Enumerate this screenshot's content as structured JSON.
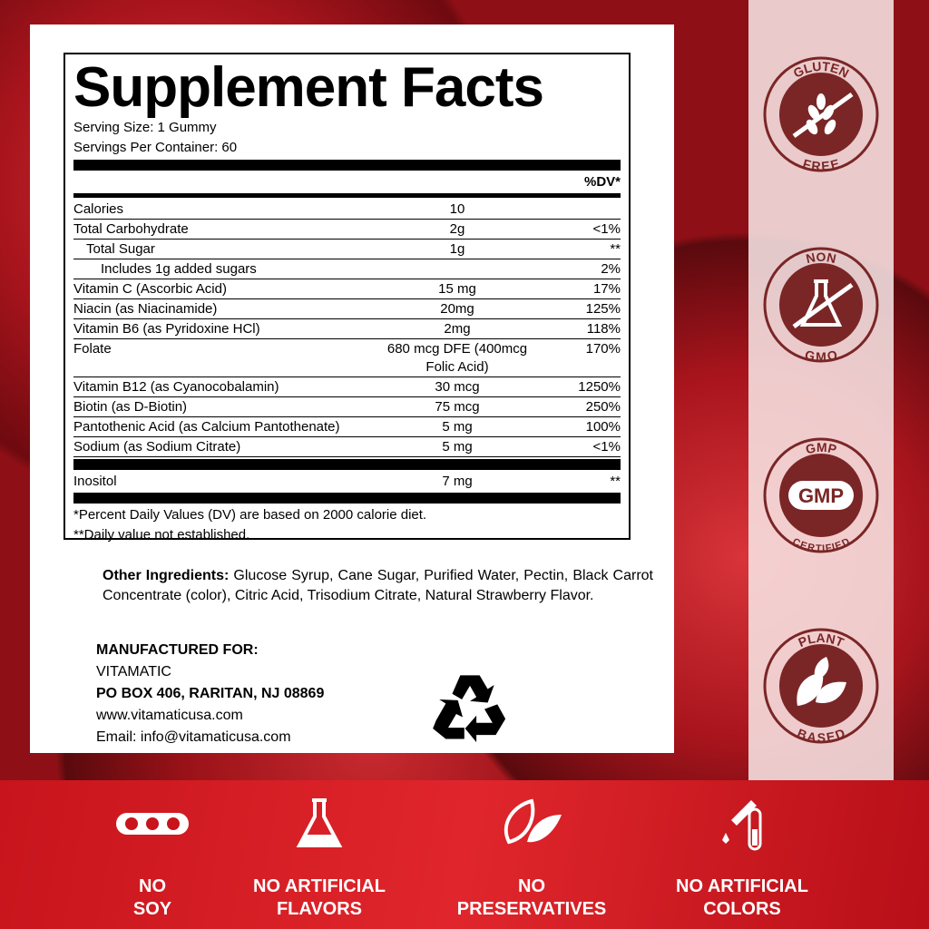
{
  "facts": {
    "title": "Supplement Facts",
    "serving_size": "Serving Size: 1 Gummy",
    "servings": "Servings Per Container: 60",
    "dv_header": "%DV*",
    "rows": [
      {
        "name": "Calories",
        "amount": "10",
        "dv": ""
      },
      {
        "name": "Total Carbohydrate",
        "amount": "2g",
        "dv": "<1%"
      },
      {
        "name": "Total Sugar",
        "amount": "1g",
        "dv": "**"
      },
      {
        "name": "Includes 1g added sugars",
        "amount": "",
        "dv": "2%"
      },
      {
        "name": "Vitamin C (Ascorbic Acid)",
        "amount": "15 mg",
        "dv": "17%"
      },
      {
        "name": "Niacin (as Niacinamide)",
        "amount": "20mg",
        "dv": "125%"
      },
      {
        "name": "Vitamin B6 (as Pyridoxine HCl)",
        "amount": "2mg",
        "dv": "118%"
      },
      {
        "name": "Folate",
        "amount": "680 mcg DFE (400mcg Folic Acid)",
        "dv": "170%"
      },
      {
        "name": "Vitamin B12 (as Cyanocobalamin)",
        "amount": "30 mcg",
        "dv": "1250%"
      },
      {
        "name": "Biotin (as D-Biotin)",
        "amount": "75 mcg",
        "dv": "250%"
      },
      {
        "name": "Pantothenic Acid (as Calcium Pantothenate)",
        "amount": "5 mg",
        "dv": "100%"
      },
      {
        "name": "Sodium (as Sodium Citrate)",
        "amount": "5 mg",
        "dv": "<1%"
      }
    ],
    "extra": {
      "name": "Inositol",
      "amount": "7 mg",
      "dv": "**"
    },
    "footnote1": "*Percent Daily Values (DV) are based on 2000 calorie diet.",
    "footnote2": "**Daily value not established."
  },
  "other": {
    "label": "Other Ingredients:",
    "text": "Glucose Syrup, Cane Sugar, Purified Water, Pectin, Black Carrot Concentrate (color), Citric Acid, Trisodium Citrate, Natural Strawberry Flavor."
  },
  "mfg": {
    "heading": "MANUFACTURED FOR:",
    "company": "VITAMATIC",
    "address": "PO BOX 406, RARITAN, NJ 08869",
    "web": "www.vitamaticusa.com",
    "email": "Email: info@vitamaticusa.com"
  },
  "badges": [
    {
      "top": "GLUTEN",
      "bottom": "FREE",
      "icon": "wheat-crossed-icon"
    },
    {
      "top": "NON",
      "bottom": "GMO",
      "icon": "flask-crossed-icon"
    },
    {
      "top": "GMP",
      "bottom": "CERTIFIED",
      "center": "GMP",
      "icon": "gmp-icon"
    },
    {
      "top": "PLANT",
      "bottom": "BASED",
      "icon": "leaves-icon"
    }
  ],
  "features": [
    {
      "line1": "NO",
      "line2": "SOY",
      "icon": "soybean-icon"
    },
    {
      "line1": "NO ARTIFICIAL",
      "line2": "FLAVORS",
      "icon": "flask-icon"
    },
    {
      "line1": "NO",
      "line2": "PRESERVATIVES",
      "icon": "leaf-icon"
    },
    {
      "line1": "NO ARTIFICIAL",
      "line2": "COLORS",
      "icon": "dropper-tube-icon"
    }
  ],
  "colors": {
    "badge": "#7a2626",
    "band": "#d41e24"
  }
}
